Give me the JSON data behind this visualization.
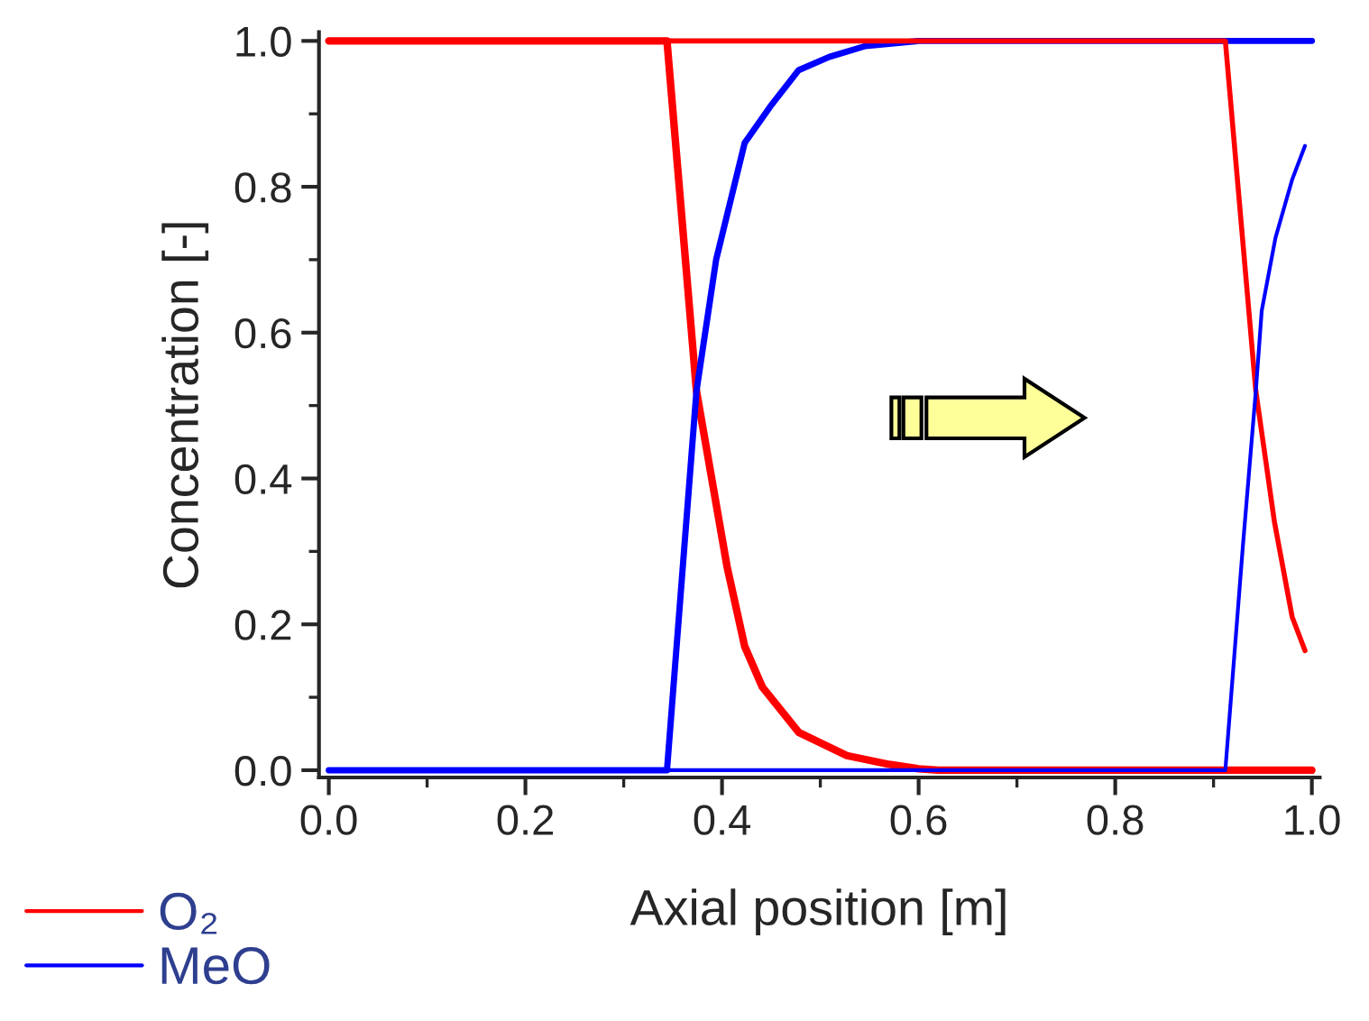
{
  "chart_data": {
    "type": "line",
    "xlabel": "Axial position [m]",
    "ylabel": "Concentration [-]",
    "xlim": [
      -0.01,
      1.008
    ],
    "ylim": [
      -0.01,
      1.012
    ],
    "xticks": [
      {
        "value": 0,
        "label": "0.0"
      },
      {
        "value": 0.1,
        "label": null
      },
      0.2,
      {
        "value": 0.3,
        "label": null
      },
      0.4,
      {
        "value": 0.5,
        "label": null
      },
      0.6,
      {
        "value": 0.7,
        "label": null
      },
      0.8,
      {
        "value": 0.9,
        "label": null
      },
      {
        "value": 1,
        "label": "1.0"
      }
    ],
    "yticks": [
      {
        "value": 0,
        "label": "0.0"
      },
      {
        "value": 0.1,
        "label": null
      },
      0.2,
      {
        "value": 0.3,
        "label": null
      },
      0.4,
      {
        "value": 0.5,
        "label": null
      },
      0.6,
      {
        "value": 0.7,
        "label": null
      },
      0.8,
      {
        "value": 0.9,
        "label": null
      },
      {
        "value": 1,
        "label": "1.0"
      }
    ],
    "grid": false,
    "legend": "bottom left",
    "marker": "none",
    "line_style": "solid",
    "series": [
      {
        "name": "O₂",
        "color": "#ff0000",
        "x": [
          0.0,
          0.344,
          0.374,
          0.405,
          0.423,
          0.441,
          0.478,
          0.527,
          0.57,
          0.6,
          0.62,
          1.0
        ],
        "values": [
          1.0,
          1.0,
          0.52,
          0.28,
          0.17,
          0.114,
          0.052,
          0.02,
          0.008,
          0.002,
          0.0,
          0.0
        ]
      },
      {
        "name": "MeO",
        "color": "#0000ff",
        "x": [
          0.0,
          0.344,
          0.374,
          0.394,
          0.423,
          0.449,
          0.478,
          0.509,
          0.546,
          0.6,
          1.0
        ],
        "values": [
          0.0,
          0.0,
          0.52,
          0.7,
          0.86,
          0.91,
          0.96,
          0.978,
          0.993,
          1.0,
          1.0
        ]
      },
      {
        "color": "#ff0000",
        "x": [
          0.0,
          0.912,
          0.943,
          0.962,
          0.98,
          0.993
        ],
        "values": [
          1.0,
          1.0,
          0.52,
          0.34,
          0.21,
          0.164
        ]
      },
      {
        "color": "#0000ff",
        "x": [
          0.0,
          0.912,
          0.93,
          0.943,
          0.949,
          0.963,
          0.98,
          0.993
        ],
        "values": [
          0.0,
          0.0,
          0.31,
          0.52,
          0.63,
          0.73,
          0.81,
          0.856
        ]
      }
    ]
  }
}
